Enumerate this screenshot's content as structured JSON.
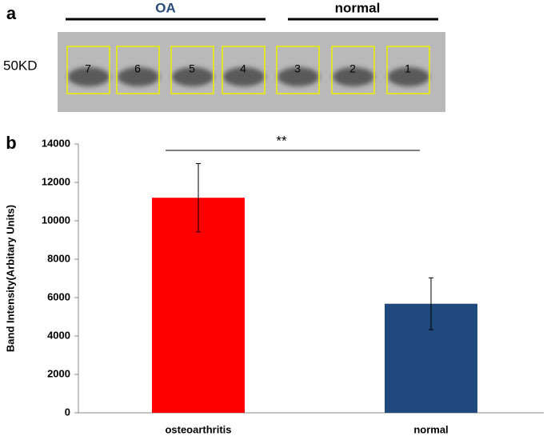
{
  "panel_a": {
    "label": "a",
    "groups": [
      "OA",
      "normal"
    ],
    "marker": "50KD",
    "lanes": [
      "7",
      "6",
      "5",
      "4",
      "3",
      "2",
      "1"
    ]
  },
  "chart_data": {
    "type": "bar",
    "panel_label": "b",
    "y_label": "Band Intensity(Arbitary Units)",
    "categories": [
      "osteoarthritis",
      "normal"
    ],
    "values": [
      11200,
      5680
    ],
    "errors": [
      1780,
      1350
    ],
    "colors": [
      "#ff0000",
      "#1f497d"
    ],
    "significance": "**",
    "ylim": [
      0,
      14000
    ],
    "yticks": [
      0,
      2000,
      4000,
      6000,
      8000,
      10000,
      12000,
      14000
    ]
  }
}
